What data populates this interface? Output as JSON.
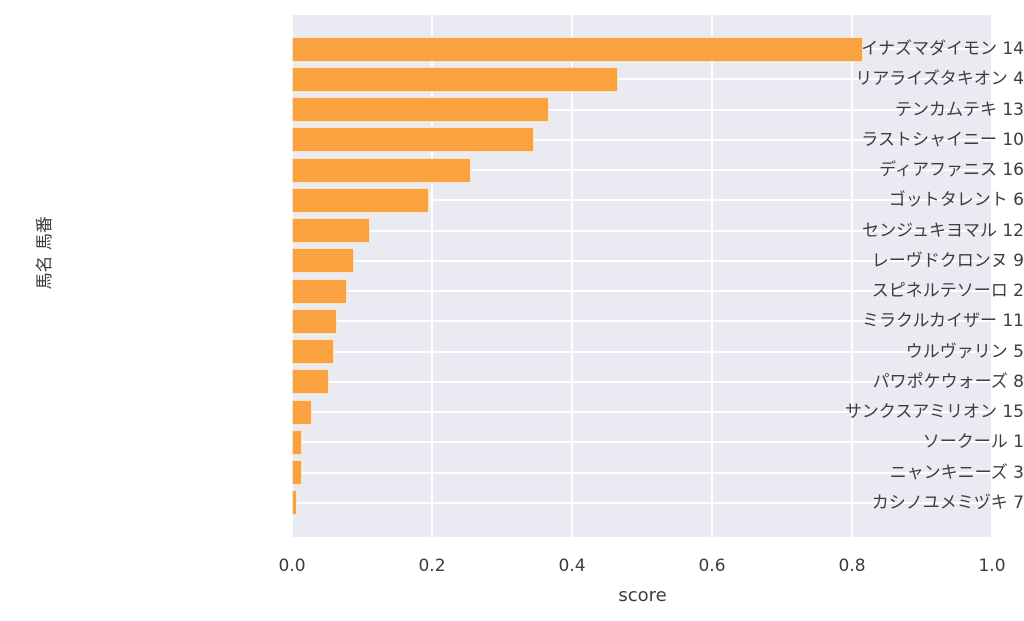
{
  "chart_data": {
    "type": "bar",
    "orientation": "horizontal",
    "title": "",
    "xlabel": "score",
    "ylabel": "馬名 馬番",
    "xlim": [
      0.0,
      1.0
    ],
    "xticks": [
      "0.0",
      "0.2",
      "0.4",
      "0.6",
      "0.8",
      "1.0"
    ],
    "grid": "on",
    "legend": "none",
    "categories": [
      "イナズマダイモン 14",
      "リアライズタキオン 4",
      "テンカムテキ 13",
      "ラストシャイニー 10",
      "ディアファニス 16",
      "ゴットタレント 6",
      "センジュキヨマル 12",
      "レーヴドクロンヌ 9",
      "スピネルテソーロ 2",
      "ミラクルカイザー 11",
      "ウルヴァリン 5",
      "パワポケウォーズ 8",
      "サンクスアミリオン 15",
      "ソークール 1",
      "ニャンキニーズ 3",
      "カシノユメミヅキ 7"
    ],
    "values": [
      0.815,
      0.465,
      0.367,
      0.345,
      0.255,
      0.196,
      0.111,
      0.089,
      0.079,
      0.064,
      0.06,
      0.053,
      0.029,
      0.014,
      0.014,
      0.007
    ],
    "colors": {
      "bar": "#F9A23F",
      "bar_edge": "rgba(255,255,255,0.7)",
      "plot_background": "#EAEAF2",
      "gridline": "#FFFFFF",
      "text": "#3D3D3D",
      "figure_background": "#FFFFFF"
    }
  }
}
